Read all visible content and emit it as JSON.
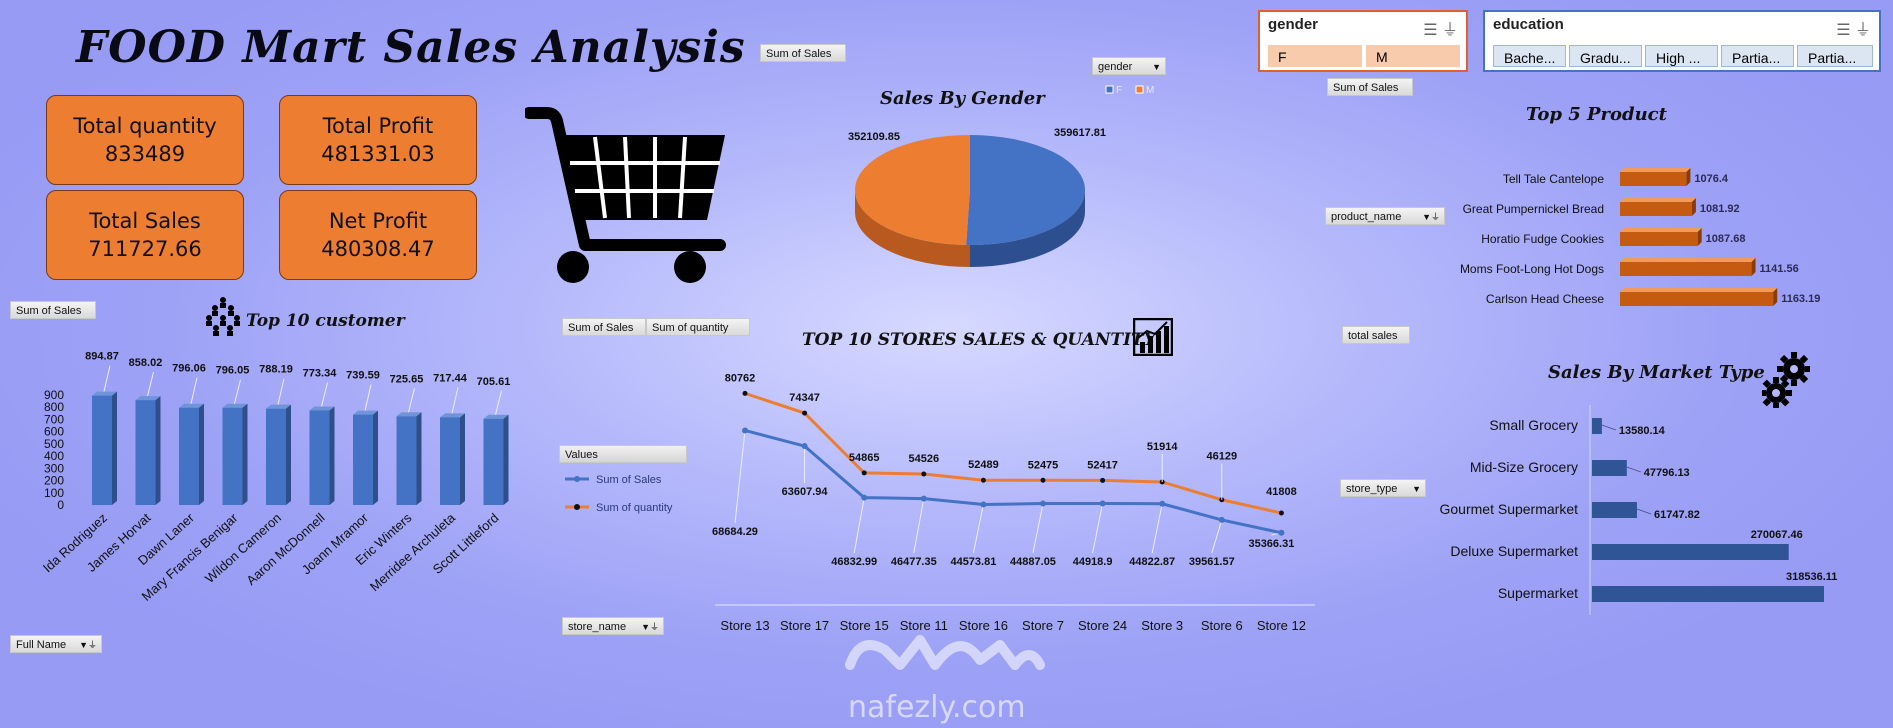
{
  "title": "FOOD Mart Sales Analysis",
  "kpis": [
    {
      "label": "Total quantity",
      "value": "833489"
    },
    {
      "label": "Total Profit",
      "value": "481331.03"
    },
    {
      "label": "Total Sales",
      "value": "711727.66"
    },
    {
      "label": "Net Profit",
      "value": "480308.47"
    }
  ],
  "field_buttons": {
    "pie_sum": "Sum of Sales",
    "gender": "gender",
    "top5_sum": "Sum of Sales",
    "product_name": "product_name",
    "total_sales": "total sales",
    "store_type": "store_type",
    "cust_sum": "Sum of Sales",
    "full_name": "Full Name",
    "stores_sum_sales": "Sum of Sales",
    "stores_sum_qty": "Sum of quantity",
    "values": "Values",
    "store_name": "store_name"
  },
  "slicers": {
    "gender": {
      "title": "gender",
      "items": [
        "F",
        "M"
      ],
      "border": "#e06030",
      "item_bg": "#f8cbad"
    },
    "education": {
      "title": "education",
      "items": [
        "Bache...",
        "Gradu...",
        "High ...",
        "Partia...",
        "Partia..."
      ],
      "border": "#4472c4",
      "item_bg": "#dce6f2"
    }
  },
  "colors": {
    "blue": "#4472c4",
    "orange": "#ed7d31",
    "dark_blue": "#2f5597",
    "bar_orange": "#c55a11"
  },
  "icons": [
    "shopping-cart-icon",
    "people-icon",
    "chart-bar-icon",
    "gear-icon",
    "filter-icon",
    "multiselect-icon",
    "clear-filter-icon"
  ],
  "watermark": {
    "text": "nafezly.com"
  },
  "charts": {
    "gender": {
      "title": "Sales By Gender",
      "legend": [
        "F",
        "M"
      ],
      "labels": [
        "352109.85",
        "359617.81"
      ]
    },
    "top5": {
      "title": "Top 5 Product",
      "labels": [
        "Tell Tale Cantelope",
        "Great Pumpernickel Bread",
        "Horatio Fudge Cookies",
        "Moms Foot-Long Hot Dogs",
        "Carlson Head Cheese"
      ],
      "value_labels": [
        "1076.4",
        "1081.92",
        "1087.68",
        "1141.56",
        "1163.19"
      ]
    },
    "market": {
      "title": "Sales By Market Type",
      "labels": [
        "Small Grocery",
        "Mid-Size Grocery",
        "Gourmet Supermarket",
        "Deluxe Supermarket",
        "Supermarket"
      ],
      "value_labels": [
        "13580.14",
        "47796.13",
        "61747.82",
        "270067.46",
        "318536.11"
      ]
    },
    "customers": {
      "title": "Top 10 customer",
      "labels": [
        "Ida Rodriguez",
        "James Horvat",
        "Dawn Laner",
        "Mary Francis Benigar",
        "Wildon Cameron",
        "Aaron McDonnell",
        "Joann Mramor",
        "Eric Winters",
        "Merridee Archuleta",
        "Scott Littleford"
      ],
      "value_labels": [
        "894.87",
        "858.02",
        "796.06",
        "796.05",
        "788.19",
        "773.34",
        "739.59",
        "725.65",
        "717.44",
        "705.61"
      ],
      "y_ticks": [
        "900",
        "800",
        "700",
        "600",
        "500",
        "400",
        "300",
        "200",
        "100",
        "0"
      ]
    },
    "stores": {
      "title": "TOP 10 STORES SALES & QUANTITY",
      "labels": [
        "Store 13",
        "Store 17",
        "Store 15",
        "Store 11",
        "Store 16",
        "Store 7",
        "Store 24",
        "Store 3",
        "Store 6",
        "Store 12"
      ],
      "sales_labels": [
        "68684.29",
        "63607.94",
        "46832.99",
        "46477.35",
        "44573.81",
        "44887.05",
        "44918.9",
        "44822.87",
        "39561.57",
        "35366.31"
      ],
      "qty_labels": [
        "80762",
        "74347",
        "54865",
        "54526",
        "52489",
        "52475",
        "52417",
        "51914",
        "46129",
        "41808"
      ],
      "legend": [
        "Sum of Sales",
        "Sum of quantity"
      ]
    }
  },
  "chart_data": [
    {
      "type": "pie",
      "title": "Sales By Gender",
      "categories": [
        "F",
        "M"
      ],
      "values": [
        352109.85,
        359617.81
      ]
    },
    {
      "type": "bar",
      "title": "Top 5 Product",
      "categories": [
        "Tell Tale Cantelope",
        "Great Pumpernickel Bread",
        "Horatio Fudge Cookies",
        "Moms Foot-Long Hot Dogs",
        "Carlson Head Cheese"
      ],
      "values": [
        1076.4,
        1081.92,
        1087.68,
        1141.56,
        1163.19
      ]
    },
    {
      "type": "bar",
      "title": "Sales By Market Type",
      "categories": [
        "Small Grocery",
        "Mid-Size Grocery",
        "Gourmet Supermarket",
        "Deluxe Supermarket",
        "Supermarket"
      ],
      "values": [
        13580.14,
        47796.13,
        61747.82,
        270067.46,
        318536.11
      ]
    },
    {
      "type": "bar",
      "title": "Top 10 customer",
      "categories": [
        "Ida Rodriguez",
        "James Horvat",
        "Dawn Laner",
        "Mary Francis Benigar",
        "Wildon Cameron",
        "Aaron McDonnell",
        "Joann Mramor",
        "Eric Winters",
        "Merridee Archuleta",
        "Scott Littleford"
      ],
      "values": [
        894.87,
        858.02,
        796.06,
        796.05,
        788.19,
        773.34,
        739.59,
        725.65,
        717.44,
        705.61
      ],
      "ylim": [
        0,
        900
      ]
    },
    {
      "type": "line",
      "title": "TOP 10 STORES SALES & QUANTITY",
      "categories": [
        "Store 13",
        "Store 17",
        "Store 15",
        "Store 11",
        "Store 16",
        "Store 7",
        "Store 24",
        "Store 3",
        "Store 6",
        "Store 12"
      ],
      "series": [
        {
          "name": "Sum of Sales",
          "values": [
            68684.29,
            63607.94,
            46832.99,
            46477.35,
            44573.81,
            44887.05,
            44918.9,
            44822.87,
            39561.57,
            35366.31
          ]
        },
        {
          "name": "Sum of quantity",
          "values": [
            80762,
            74347,
            54865,
            54526,
            52489,
            52475,
            52417,
            51914,
            46129,
            41808
          ]
        }
      ]
    }
  ]
}
